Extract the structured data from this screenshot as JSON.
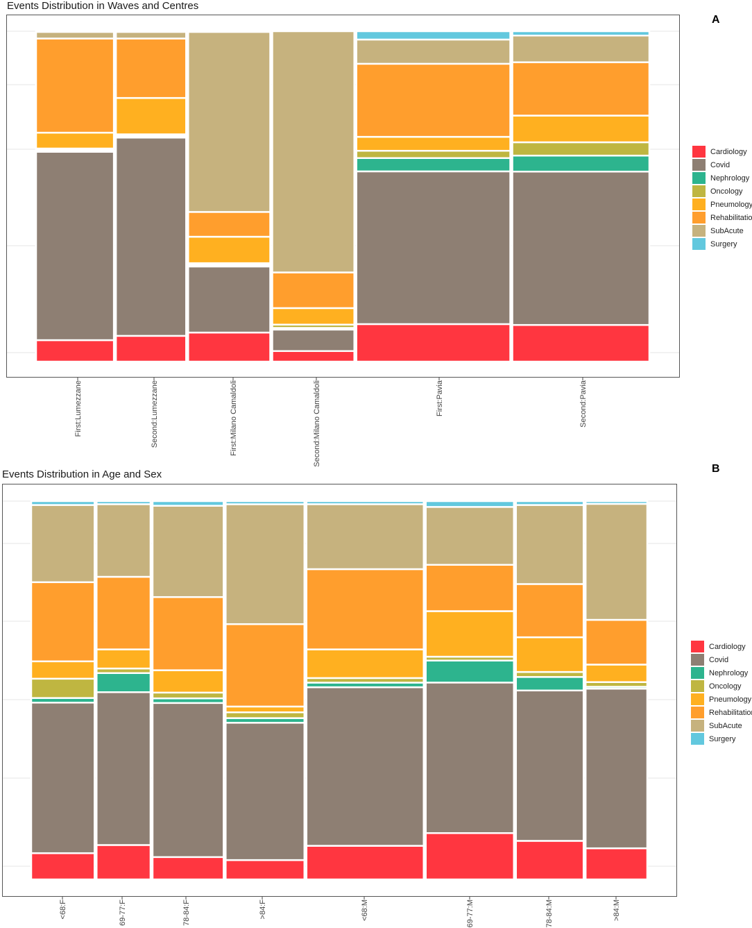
{
  "chart_data": [
    {
      "id": "A",
      "type": "mosaic",
      "title": "Events Distribution in Waves and Centres",
      "panel_label": "A",
      "legend_position": "right",
      "categories": [
        {
          "label": "First:Lumezzane",
          "weight": 0.092,
          "shares": {
            "Cardiology": 0.065,
            "Covid": 0.57,
            "Nephrology": 0.005,
            "Oncology": 0.005,
            "Pneumology": 0.048,
            "Rehabilitation": 0.285,
            "SubAcute": 0.02,
            "Surgery": 0.002
          }
        },
        {
          "label": "Second:Lumezzane",
          "weight": 0.083,
          "shares": {
            "Cardiology": 0.078,
            "Covid": 0.6,
            "Nephrology": 0.005,
            "Oncology": 0.005,
            "Pneumology": 0.11,
            "Rehabilitation": 0.18,
            "SubAcute": 0.02,
            "Surgery": 0.002
          }
        },
        {
          "label": "First:Milano Camaldoli",
          "weight": 0.097,
          "shares": {
            "Cardiology": 0.088,
            "Covid": 0.2,
            "Nephrology": 0.005,
            "Oncology": 0.005,
            "Pneumology": 0.08,
            "Rehabilitation": 0.075,
            "SubAcute": 0.545,
            "Surgery": 0.002
          }
        },
        {
          "label": "Second:Milano Camaldoli",
          "weight": 0.097,
          "shares": {
            "Cardiology": 0.032,
            "Covid": 0.065,
            "Nephrology": 0.005,
            "Oncology": 0.01,
            "Pneumology": 0.05,
            "Rehabilitation": 0.108,
            "SubAcute": 0.73,
            "Surgery": 0.0
          }
        },
        {
          "label": "First:Pavia",
          "weight": 0.182,
          "shares": {
            "Cardiology": 0.113,
            "Covid": 0.46,
            "Nephrology": 0.04,
            "Oncology": 0.022,
            "Pneumology": 0.042,
            "Rehabilitation": 0.22,
            "SubAcute": 0.073,
            "Surgery": 0.025
          }
        },
        {
          "label": "Second:Pavia",
          "weight": 0.162,
          "shares": {
            "Cardiology": 0.11,
            "Covid": 0.46,
            "Nephrology": 0.048,
            "Oncology": 0.04,
            "Pneumology": 0.08,
            "Rehabilitation": 0.16,
            "SubAcute": 0.08,
            "Surgery": 0.013
          }
        }
      ]
    },
    {
      "id": "B",
      "type": "mosaic",
      "title": "Events Distribution in Age and Sex",
      "panel_label": "B",
      "legend_position": "right",
      "categories": [
        {
          "label": "<68:F",
          "weight": 0.074,
          "shares": {
            "Cardiology": 0.068,
            "Covid": 0.39,
            "Nephrology": 0.012,
            "Oncology": 0.05,
            "Pneumology": 0.045,
            "Rehabilitation": 0.205,
            "SubAcute": 0.2,
            "Surgery": 0.01
          }
        },
        {
          "label": "69-77:F",
          "weight": 0.063,
          "shares": {
            "Cardiology": 0.09,
            "Covid": 0.4,
            "Nephrology": 0.05,
            "Oncology": 0.012,
            "Pneumology": 0.05,
            "Rehabilitation": 0.19,
            "SubAcute": 0.19,
            "Surgery": 0.008
          }
        },
        {
          "label": "78-84:F",
          "weight": 0.083,
          "shares": {
            "Cardiology": 0.058,
            "Covid": 0.4,
            "Nephrology": 0.012,
            "Oncology": 0.015,
            "Pneumology": 0.058,
            "Rehabilitation": 0.19,
            "SubAcute": 0.237,
            "Surgery": 0.012
          }
        },
        {
          "label": ">84:F",
          "weight": 0.092,
          "shares": {
            "Cardiology": 0.05,
            "Covid": 0.355,
            "Nephrology": 0.012,
            "Oncology": 0.015,
            "Pneumology": 0.015,
            "Rehabilitation": 0.213,
            "SubAcute": 0.31,
            "Surgery": 0.008
          }
        },
        {
          "label": "<68:M",
          "weight": 0.137,
          "shares": {
            "Cardiology": 0.088,
            "Covid": 0.415,
            "Nephrology": 0.012,
            "Oncology": 0.012,
            "Pneumology": 0.075,
            "Rehabilitation": 0.21,
            "SubAcute": 0.17,
            "Surgery": 0.008
          }
        },
        {
          "label": "69-77:M",
          "weight": 0.103,
          "shares": {
            "Cardiology": 0.12,
            "Covid": 0.39,
            "Nephrology": 0.057,
            "Oncology": 0.01,
            "Pneumology": 0.118,
            "Rehabilitation": 0.12,
            "SubAcute": 0.15,
            "Surgery": 0.015
          }
        },
        {
          "label": "78-84:M",
          "weight": 0.079,
          "shares": {
            "Cardiology": 0.1,
            "Covid": 0.39,
            "Nephrology": 0.035,
            "Oncology": 0.013,
            "Pneumology": 0.09,
            "Rehabilitation": 0.138,
            "SubAcute": 0.205,
            "Surgery": 0.01
          }
        },
        {
          "label": ">84:M",
          "weight": 0.072,
          "shares": {
            "Cardiology": 0.08,
            "Covid": 0.41,
            "Nephrology": 0.005,
            "Oncology": 0.012,
            "Pneumology": 0.045,
            "Rehabilitation": 0.115,
            "SubAcute": 0.298,
            "Surgery": 0.007
          }
        }
      ]
    }
  ],
  "legend": {
    "items": [
      {
        "label": "Cardiology",
        "color": "#FF3640"
      },
      {
        "label": "Covid",
        "color": "#8E7F73"
      },
      {
        "label": "Nephrology",
        "color": "#2DB48E"
      },
      {
        "label": "Oncology",
        "color": "#BFB641"
      },
      {
        "label": "Pneumology",
        "color": "#FFB020"
      },
      {
        "label": "Rehabilitation",
        "color": "#FF9E2D"
      },
      {
        "label": "SubAcute",
        "color": "#C6B27E"
      },
      {
        "label": "Surgery",
        "color": "#62C8DE"
      }
    ]
  }
}
